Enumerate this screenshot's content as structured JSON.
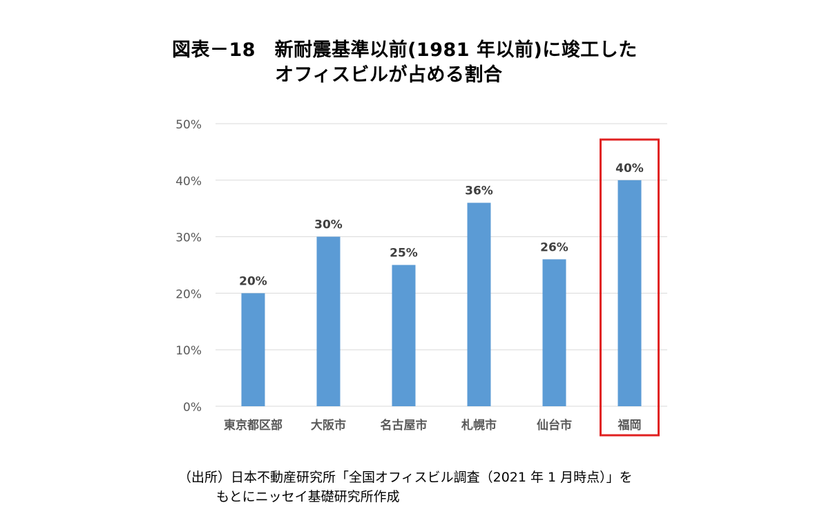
{
  "title_lines": [
    "図表－18　新耐震基準以前(1981 年以前)に竣工した",
    "オフィスビルが占める割合"
  ],
  "source_lines": [
    "（出所）日本不動産研究所「全国オフィスビル調査（2021 年 1 月時点）」を",
    "もとにニッセイ基礎研究所作成"
  ],
  "chart_data": {
    "type": "bar",
    "categories": [
      "東京都区部",
      "大阪市",
      "名古屋市",
      "札幌市",
      "仙台市",
      "福岡"
    ],
    "values": [
      20,
      30,
      25,
      36,
      26,
      40
    ],
    "data_labels": [
      "20%",
      "30%",
      "25%",
      "36%",
      "26%",
      "40%"
    ],
    "yticks": [
      "0%",
      "10%",
      "20%",
      "30%",
      "40%",
      "50%"
    ],
    "ylim": [
      0,
      50
    ],
    "grid": true,
    "highlight_category": "福岡",
    "colors": {
      "bar": "#5B9BD5",
      "highlight_box": "#E02020",
      "grid": "#D9D9D9",
      "tick_text": "#595959",
      "label_text": "#404040"
    }
  }
}
